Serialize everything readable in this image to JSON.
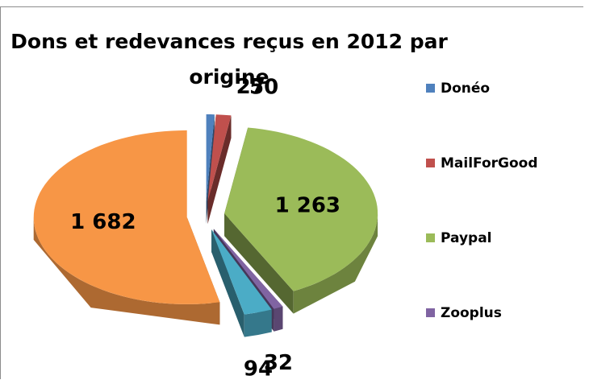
{
  "chart_data": {
    "type": "pie",
    "title": "Dons et redevances reçus en 2012 par origine",
    "categories": [
      "Donéo",
      "MailForGood",
      "Paypal",
      "Zooplus",
      null,
      null
    ],
    "values": [
      27,
      50,
      1263,
      32,
      94,
      1682
    ],
    "value_labels": [
      "27",
      "50",
      "1 263",
      "32",
      "94",
      "1 682"
    ],
    "colors": [
      "#4f81bd",
      "#c0504d",
      "#9bbb59",
      "#8064a2",
      "#4bacc6",
      "#f79646"
    ],
    "legend": "right"
  }
}
